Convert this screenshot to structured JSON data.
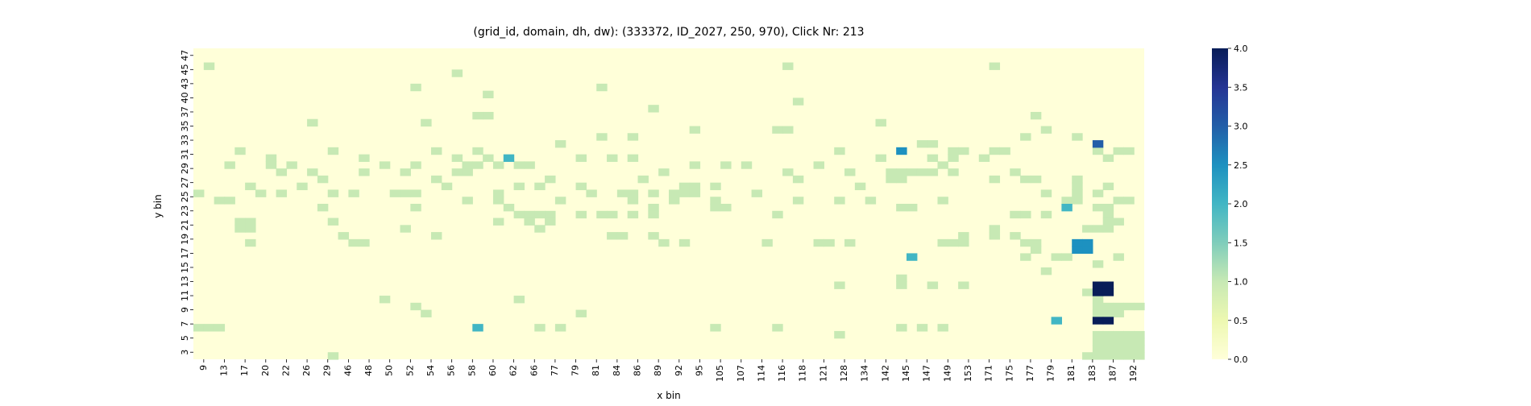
{
  "chart_data": {
    "type": "heatmap",
    "title": "(grid_id, domain, dh, dw): (333372, ID_2027, 250, 970), Click Nr: 213",
    "xlabel": "x bin",
    "ylabel": "y bin",
    "x_tick_labels": [
      "9",
      "13",
      "17",
      "20",
      "22",
      "26",
      "29",
      "46",
      "48",
      "50",
      "52",
      "54",
      "56",
      "58",
      "60",
      "62",
      "66",
      "77",
      "79",
      "81",
      "84",
      "86",
      "89",
      "92",
      "95",
      "105",
      "107",
      "114",
      "116",
      "118",
      "121",
      "128",
      "134",
      "142",
      "145",
      "147",
      "149",
      "153",
      "171",
      "175",
      "177",
      "179",
      "181",
      "183",
      "187",
      "192"
    ],
    "y_tick_labels_top_to_bottom": [
      "47",
      "45",
      "43",
      "40",
      "37",
      "35",
      "33",
      "31",
      "29",
      "27",
      "25",
      "23",
      "21",
      "19",
      "17",
      "15",
      "13",
      "11",
      "9",
      "7",
      "5",
      "3"
    ],
    "colorbar": {
      "min": 0.0,
      "max": 4.0,
      "tick_labels": [
        "0.0",
        "0.5",
        "1.0",
        "1.5",
        "2.0",
        "2.5",
        "3.0",
        "3.5",
        "4.0"
      ],
      "colormap": "YlGnBu",
      "colors": [
        "#ffffd9",
        "#edf8b1",
        "#c7e9b4",
        "#7fcdbb",
        "#41b6c4",
        "#1d91c0",
        "#225ea8",
        "#253494",
        "#081d58"
      ]
    },
    "grid": {
      "n_cols": 92,
      "n_rows": 44
    },
    "cells_value_1": [
      [
        19,
        44
      ],
      [
        1,
        41
      ],
      [
        25,
        40
      ],
      [
        21,
        38
      ],
      [
        39,
        38
      ],
      [
        57,
        41
      ],
      [
        77,
        41
      ],
      [
        28,
        37
      ],
      [
        58,
        36
      ],
      [
        44,
        35
      ],
      [
        66,
        33
      ],
      [
        27,
        34
      ],
      [
        28,
        34
      ],
      [
        11,
        33
      ],
      [
        22,
        33
      ],
      [
        56,
        32
      ],
      [
        81,
        34
      ],
      [
        57,
        32
      ],
      [
        82,
        32
      ],
      [
        85,
        31
      ],
      [
        39,
        31
      ],
      [
        42,
        31
      ],
      [
        48,
        32
      ],
      [
        35,
        30
      ],
      [
        80,
        31
      ],
      [
        27,
        29
      ],
      [
        70,
        30
      ],
      [
        71,
        30
      ],
      [
        73,
        29
      ],
      [
        74,
        29
      ],
      [
        77,
        29
      ],
      [
        78,
        29
      ],
      [
        87,
        29
      ],
      [
        89,
        29
      ],
      [
        90,
        29
      ],
      [
        92,
        29
      ],
      [
        4,
        29
      ],
      [
        13,
        29
      ],
      [
        16,
        28
      ],
      [
        23,
        29
      ],
      [
        28,
        28
      ],
      [
        37,
        28
      ],
      [
        42,
        28
      ],
      [
        62,
        29
      ],
      [
        66,
        28
      ],
      [
        71,
        28
      ],
      [
        73,
        28
      ],
      [
        76,
        28
      ],
      [
        88,
        28
      ],
      [
        92,
        28
      ],
      [
        3,
        27
      ],
      [
        7,
        28
      ],
      [
        7,
        27
      ],
      [
        9,
        27
      ],
      [
        21,
        27
      ],
      [
        18,
        27
      ],
      [
        25,
        28
      ],
      [
        27,
        27
      ],
      [
        29,
        27
      ],
      [
        32,
        27
      ],
      [
        40,
        28
      ],
      [
        48,
        27
      ],
      [
        51,
        27
      ],
      [
        53,
        27
      ],
      [
        60,
        27
      ],
      [
        63,
        26
      ],
      [
        72,
        27
      ],
      [
        71,
        26
      ],
      [
        79,
        26
      ],
      [
        8,
        26
      ],
      [
        11,
        26
      ],
      [
        16,
        26
      ],
      [
        20,
        26
      ],
      [
        25,
        26
      ],
      [
        26,
        26
      ],
      [
        26,
        27
      ],
      [
        31,
        27
      ],
      [
        45,
        26
      ],
      [
        57,
        26
      ],
      [
        67,
        26
      ],
      [
        68,
        26
      ],
      [
        69,
        26
      ],
      [
        70,
        26
      ],
      [
        73,
        26
      ],
      [
        77,
        25
      ],
      [
        81,
        25
      ],
      [
        85,
        25
      ],
      [
        12,
        25
      ],
      [
        23,
        25
      ],
      [
        34,
        25
      ],
      [
        43,
        25
      ],
      [
        67,
        25
      ],
      [
        80,
        25
      ],
      [
        68,
        25
      ],
      [
        58,
        25
      ],
      [
        85,
        24
      ],
      [
        88,
        24
      ],
      [
        10,
        24
      ],
      [
        24,
        24
      ],
      [
        31,
        24
      ],
      [
        50,
        24
      ],
      [
        64,
        24
      ],
      [
        5,
        24
      ],
      [
        6,
        23
      ],
      [
        47,
        24
      ],
      [
        48,
        24
      ],
      [
        47,
        23
      ],
      [
        41,
        23
      ],
      [
        20,
        23
      ],
      [
        8,
        23
      ],
      [
        29,
        23
      ],
      [
        33,
        24
      ],
      [
        37,
        24
      ],
      [
        42,
        23
      ],
      [
        44,
        23
      ],
      [
        46,
        23
      ],
      [
        13,
        23
      ],
      [
        15,
        23
      ],
      [
        21,
        23
      ],
      [
        0,
        23
      ],
      [
        82,
        23
      ],
      [
        85,
        23
      ],
      [
        19,
        23
      ],
      [
        38,
        23
      ],
      [
        54,
        23
      ],
      [
        58,
        22
      ],
      [
        50,
        22
      ],
      [
        46,
        22
      ],
      [
        48,
        23
      ],
      [
        35,
        22
      ],
      [
        62,
        22
      ],
      [
        42,
        22
      ],
      [
        72,
        22
      ],
      [
        85,
        22
      ],
      [
        84,
        22
      ],
      [
        87,
        23
      ],
      [
        65,
        22
      ],
      [
        89,
        22
      ],
      [
        90,
        22
      ],
      [
        2,
        22
      ],
      [
        3,
        22
      ],
      [
        26,
        22
      ],
      [
        29,
        22
      ],
      [
        12,
        21
      ],
      [
        21,
        21
      ],
      [
        30,
        21
      ],
      [
        44,
        21
      ],
      [
        51,
        21
      ],
      [
        69,
        21
      ],
      [
        50,
        21
      ],
      [
        68,
        21
      ],
      [
        31,
        20
      ],
      [
        32,
        20
      ],
      [
        33,
        20
      ],
      [
        34,
        20
      ],
      [
        39,
        20
      ],
      [
        37,
        20
      ],
      [
        40,
        20
      ],
      [
        44,
        20
      ],
      [
        56,
        20
      ],
      [
        42,
        20
      ],
      [
        4,
        19
      ],
      [
        5,
        19
      ],
      [
        13,
        19
      ],
      [
        32,
        19
      ],
      [
        34,
        19
      ],
      [
        33,
        18
      ],
      [
        79,
        20
      ],
      [
        80,
        20
      ],
      [
        82,
        20
      ],
      [
        87,
        21
      ],
      [
        88,
        21
      ],
      [
        88,
        20
      ],
      [
        88,
        19
      ],
      [
        89,
        19
      ],
      [
        88,
        18
      ],
      [
        4,
        18
      ],
      [
        5,
        18
      ],
      [
        20,
        18
      ],
      [
        29,
        19
      ],
      [
        77,
        18
      ],
      [
        86,
        18
      ],
      [
        87,
        18
      ],
      [
        14,
        17
      ],
      [
        23,
        17
      ],
      [
        40,
        17
      ],
      [
        41,
        17
      ],
      [
        44,
        17
      ],
      [
        74,
        17
      ],
      [
        77,
        17
      ],
      [
        79,
        17
      ],
      [
        81,
        16
      ],
      [
        63,
        16
      ],
      [
        55,
        16
      ],
      [
        47,
        16
      ],
      [
        16,
        16
      ],
      [
        15,
        16
      ],
      [
        5,
        16
      ],
      [
        45,
        16
      ],
      [
        60,
        16
      ],
      [
        61,
        16
      ],
      [
        72,
        16
      ],
      [
        73,
        16
      ],
      [
        74,
        16
      ],
      [
        80,
        16
      ],
      [
        81,
        15
      ],
      [
        80,
        14
      ],
      [
        83,
        14
      ],
      [
        84,
        14
      ],
      [
        89,
        14
      ],
      [
        87,
        13
      ],
      [
        82,
        12
      ],
      [
        68,
        11
      ],
      [
        68,
        10
      ],
      [
        62,
        10
      ],
      [
        71,
        10
      ],
      [
        74,
        10
      ],
      [
        86,
        9
      ],
      [
        87,
        9
      ],
      [
        87,
        8
      ],
      [
        87,
        7
      ],
      [
        88,
        7
      ],
      [
        89,
        7
      ],
      [
        90,
        7
      ],
      [
        91,
        7
      ],
      [
        87,
        6
      ],
      [
        88,
        6
      ],
      [
        89,
        6
      ],
      [
        18,
        8
      ],
      [
        31,
        8
      ],
      [
        21,
        7
      ],
      [
        37,
        6
      ],
      [
        22,
        6
      ],
      [
        0,
        4
      ],
      [
        1,
        4
      ],
      [
        2,
        4
      ],
      [
        33,
        4
      ],
      [
        35,
        4
      ],
      [
        50,
        4
      ],
      [
        56,
        4
      ],
      [
        68,
        4
      ],
      [
        70,
        4
      ],
      [
        72,
        4
      ],
      [
        62,
        3
      ],
      [
        87,
        3
      ],
      [
        88,
        3
      ],
      [
        89,
        3
      ],
      [
        90,
        3
      ],
      [
        91,
        3
      ],
      [
        87,
        2
      ],
      [
        88,
        2
      ],
      [
        89,
        2
      ],
      [
        90,
        2
      ],
      [
        91,
        2
      ],
      [
        87,
        1
      ],
      [
        88,
        1
      ],
      [
        89,
        1
      ],
      [
        90,
        1
      ],
      [
        91,
        1
      ],
      [
        86,
        0
      ],
      [
        87,
        0
      ],
      [
        88,
        0
      ],
      [
        89,
        0
      ],
      [
        90,
        0
      ],
      [
        91,
        0
      ],
      [
        13,
        0
      ]
    ],
    "cells_value_2": [
      [
        27,
        4
      ],
      [
        69,
        14
      ],
      [
        30,
        28
      ],
      [
        84,
        21
      ],
      [
        83,
        5
      ]
    ],
    "cells_value_2_5": [
      [
        68,
        29
      ],
      [
        85,
        16
      ],
      [
        85,
        15
      ],
      [
        86,
        15
      ],
      [
        86,
        16
      ]
    ],
    "cells_value_3": [
      [
        87,
        30
      ]
    ],
    "cells_value_4": [
      [
        87,
        9
      ],
      [
        87,
        10
      ],
      [
        88,
        9
      ],
      [
        88,
        10
      ]
    ],
    "cells_value_4_b": [
      [
        87,
        5
      ],
      [
        88,
        5
      ]
    ]
  }
}
